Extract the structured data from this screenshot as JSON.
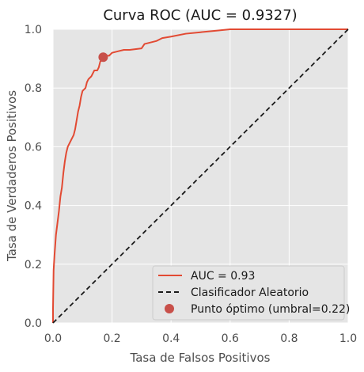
{
  "chart_data": {
    "type": "line",
    "title": "Curva ROC (AUC = 0.9327)",
    "xlabel": "Tasa de Falsos Positivos",
    "ylabel": "Tasa de Verdaderos Positivos",
    "xlim": [
      0.0,
      1.0
    ],
    "ylim": [
      0.0,
      1.0
    ],
    "xticks": [
      "0.0",
      "0.2",
      "0.4",
      "0.6",
      "0.8",
      "1.0"
    ],
    "yticks": [
      "0.0",
      "0.2",
      "0.4",
      "0.6",
      "0.8",
      "1.0"
    ],
    "grid": true,
    "legend_position": "bottom-right",
    "series": [
      {
        "name": "AUC = 0.93",
        "kind": "step-line",
        "color": "#e24a33",
        "points": [
          [
            0.0,
            0.0
          ],
          [
            0.0,
            0.05
          ],
          [
            0.002,
            0.18
          ],
          [
            0.005,
            0.23
          ],
          [
            0.01,
            0.3
          ],
          [
            0.015,
            0.34
          ],
          [
            0.02,
            0.38
          ],
          [
            0.025,
            0.43
          ],
          [
            0.03,
            0.46
          ],
          [
            0.035,
            0.51
          ],
          [
            0.04,
            0.55
          ],
          [
            0.045,
            0.58
          ],
          [
            0.05,
            0.6
          ],
          [
            0.06,
            0.62
          ],
          [
            0.07,
            0.64
          ],
          [
            0.075,
            0.66
          ],
          [
            0.08,
            0.69
          ],
          [
            0.085,
            0.72
          ],
          [
            0.09,
            0.74
          ],
          [
            0.095,
            0.77
          ],
          [
            0.1,
            0.79
          ],
          [
            0.11,
            0.8
          ],
          [
            0.115,
            0.82
          ],
          [
            0.12,
            0.83
          ],
          [
            0.13,
            0.84
          ],
          [
            0.14,
            0.86
          ],
          [
            0.15,
            0.86
          ],
          [
            0.155,
            0.87
          ],
          [
            0.16,
            0.89
          ],
          [
            0.17,
            0.9
          ],
          [
            0.18,
            0.91
          ],
          [
            0.19,
            0.91
          ],
          [
            0.2,
            0.92
          ],
          [
            0.22,
            0.925
          ],
          [
            0.24,
            0.93
          ],
          [
            0.26,
            0.93
          ],
          [
            0.3,
            0.935
          ],
          [
            0.31,
            0.95
          ],
          [
            0.33,
            0.955
          ],
          [
            0.35,
            0.96
          ],
          [
            0.37,
            0.97
          ],
          [
            0.4,
            0.975
          ],
          [
            0.45,
            0.985
          ],
          [
            0.5,
            0.99
          ],
          [
            0.55,
            0.995
          ],
          [
            0.6,
            1.0
          ],
          [
            1.0,
            1.0
          ]
        ]
      },
      {
        "name": "Clasificador Aleatorio",
        "kind": "dashed-line",
        "color": "#1a1a1a",
        "points": [
          [
            0.0,
            0.0
          ],
          [
            1.0,
            1.0
          ]
        ]
      },
      {
        "name": "Punto óptimo (umbral=0.22)",
        "kind": "marker",
        "color": "#c8504a",
        "points": [
          [
            0.17,
            0.905
          ]
        ]
      }
    ]
  }
}
